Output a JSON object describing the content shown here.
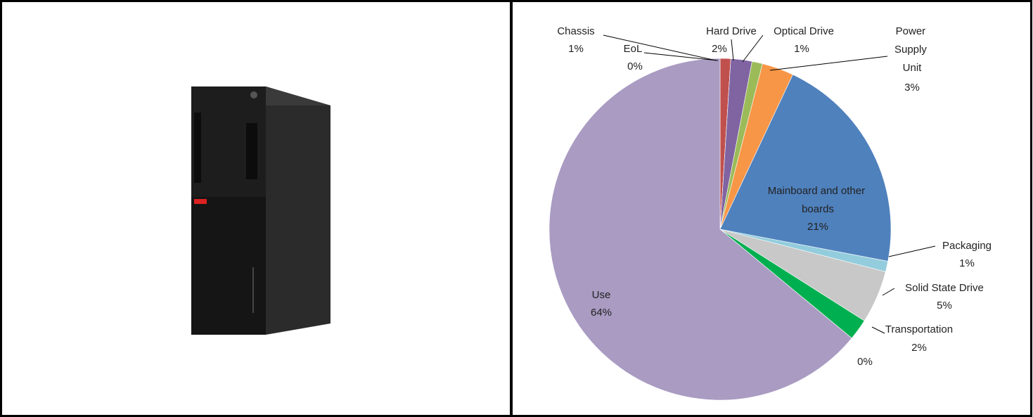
{
  "chart_data": {
    "type": "pie",
    "categories": [
      "Chassis",
      "EoL",
      "Hard Drive",
      "Optical Drive",
      "Power Supply Unit",
      "Mainboard and other boards",
      "Packaging",
      "Solid State Drive",
      "Transportation",
      null,
      "Use"
    ],
    "values": [
      1,
      0,
      2,
      1,
      3,
      21,
      1,
      5,
      2,
      0,
      64
    ],
    "value_labels": [
      "1%",
      "0%",
      "2%",
      "1%",
      "3%",
      "21%",
      "1%",
      "5%",
      "2%",
      "0%",
      "64%"
    ],
    "colors": [
      "#c0504d",
      "#8fd3e6",
      "#8064a2",
      "#9bbb59",
      "#f79646",
      "#4f81bd",
      "#93cddd",
      "#c8c8c8",
      "#00b050",
      "#4bacc6",
      "#a99bc2"
    ]
  }
}
